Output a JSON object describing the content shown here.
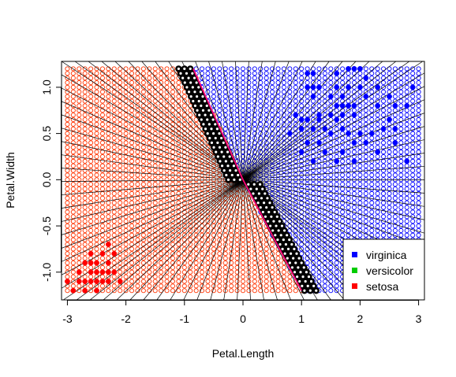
{
  "chart_data": {
    "type": "scatter",
    "title": "",
    "xlabel": "Petal.Length",
    "ylabel": "Petal.Width",
    "xlim": [
      -3.1,
      3.1
    ],
    "ylim": [
      -1.3,
      1.28
    ],
    "x_ticks": [
      -3,
      -2,
      -1,
      0,
      1,
      2,
      3
    ],
    "x_tick_labels": [
      "-3",
      "-2",
      "-1",
      "0",
      "1",
      "2",
      "3"
    ],
    "y_ticks": [
      -1.0,
      -0.5,
      0.0,
      0.5,
      1.0
    ],
    "y_tick_labels": [
      "-1.0",
      "-0.5",
      "0.0",
      "0.5",
      "1.0"
    ],
    "grid": {
      "x_start": -3.0,
      "x_end": 3.0,
      "x_step": 0.1,
      "y_start": -1.2,
      "y_end": 1.2,
      "y_step": 0.05,
      "description": "grid of open circles colored by predicted class"
    },
    "decision_boundary": {
      "x_at_top": -0.85,
      "x_at_bottom": 1.0,
      "x_at_y0": 0.0,
      "color": "#ff0077"
    },
    "legend": {
      "placement": "bottom-right",
      "entries": [
        {
          "label": "virginica",
          "color": "#0000ff"
        },
        {
          "label": "versicolor",
          "color": "#00cc00"
        },
        {
          "label": "setosa",
          "color": "#ff0000"
        }
      ]
    },
    "series": [
      {
        "name": "virginica",
        "color": "#0000ff",
        "points": [
          [
            1.1,
            1.15
          ],
          [
            1.2,
            1.15
          ],
          [
            1.8,
            1.2
          ],
          [
            1.9,
            1.2
          ],
          [
            2.0,
            1.2
          ],
          [
            1.6,
            1.15
          ],
          [
            2.1,
            1.1
          ],
          [
            1.1,
            1.0
          ],
          [
            1.2,
            1.0
          ],
          [
            1.3,
            1.0
          ],
          [
            1.6,
            1.0
          ],
          [
            1.8,
            1.0
          ],
          [
            2.0,
            1.0
          ],
          [
            2.3,
            1.0
          ],
          [
            2.9,
            1.0
          ],
          [
            1.2,
            0.9
          ],
          [
            1.5,
            0.9
          ],
          [
            1.7,
            0.9
          ],
          [
            2.1,
            0.9
          ],
          [
            2.5,
            0.9
          ],
          [
            1.6,
            0.8
          ],
          [
            1.7,
            0.8
          ],
          [
            1.8,
            0.8
          ],
          [
            1.9,
            0.8
          ],
          [
            2.3,
            0.8
          ],
          [
            2.6,
            0.8
          ],
          [
            2.8,
            0.8
          ],
          [
            0.9,
            0.7
          ],
          [
            1.3,
            0.7
          ],
          [
            1.5,
            0.7
          ],
          [
            1.7,
            0.7
          ],
          [
            1.9,
            0.7
          ],
          [
            1.0,
            0.65
          ],
          [
            1.1,
            0.65
          ],
          [
            1.3,
            0.65
          ],
          [
            1.6,
            0.65
          ],
          [
            2.5,
            0.65
          ],
          [
            1.0,
            0.55
          ],
          [
            1.2,
            0.55
          ],
          [
            1.4,
            0.55
          ],
          [
            1.7,
            0.55
          ],
          [
            2.4,
            0.55
          ],
          [
            2.6,
            0.55
          ],
          [
            0.8,
            0.5
          ],
          [
            1.5,
            0.5
          ],
          [
            1.8,
            0.5
          ],
          [
            2.0,
            0.5
          ],
          [
            2.2,
            0.5
          ],
          [
            1.1,
            0.4
          ],
          [
            1.3,
            0.4
          ],
          [
            1.9,
            0.4
          ],
          [
            2.1,
            0.4
          ],
          [
            2.6,
            0.4
          ],
          [
            1.0,
            0.3
          ],
          [
            1.4,
            0.3
          ],
          [
            1.7,
            0.3
          ],
          [
            2.3,
            0.3
          ],
          [
            1.2,
            0.2
          ],
          [
            1.6,
            0.2
          ],
          [
            1.9,
            0.2
          ],
          [
            2.8,
            0.2
          ]
        ]
      },
      {
        "name": "versicolor",
        "color": "#00cc00",
        "points": []
      },
      {
        "name": "setosa",
        "color": "#ff0000",
        "points": [
          [
            -2.3,
            -0.7
          ],
          [
            -2.6,
            -0.8
          ],
          [
            -2.4,
            -0.8
          ],
          [
            -2.2,
            -0.8
          ],
          [
            -2.7,
            -0.9
          ],
          [
            -2.6,
            -0.9
          ],
          [
            -2.5,
            -0.9
          ],
          [
            -2.3,
            -0.9
          ],
          [
            -2.8,
            -1.0
          ],
          [
            -2.6,
            -1.0
          ],
          [
            -2.5,
            -1.0
          ],
          [
            -2.4,
            -1.0
          ],
          [
            -2.3,
            -1.0
          ],
          [
            -2.2,
            -1.0
          ],
          [
            -3.0,
            -1.1
          ],
          [
            -2.8,
            -1.1
          ],
          [
            -2.7,
            -1.1
          ],
          [
            -2.6,
            -1.1
          ],
          [
            -2.5,
            -1.1
          ],
          [
            -2.4,
            -1.1
          ],
          [
            -2.3,
            -1.1
          ],
          [
            -2.1,
            -1.1
          ],
          [
            -2.9,
            -1.2
          ],
          [
            -2.7,
            -1.2
          ],
          [
            -2.5,
            -1.2
          ]
        ]
      }
    ]
  }
}
